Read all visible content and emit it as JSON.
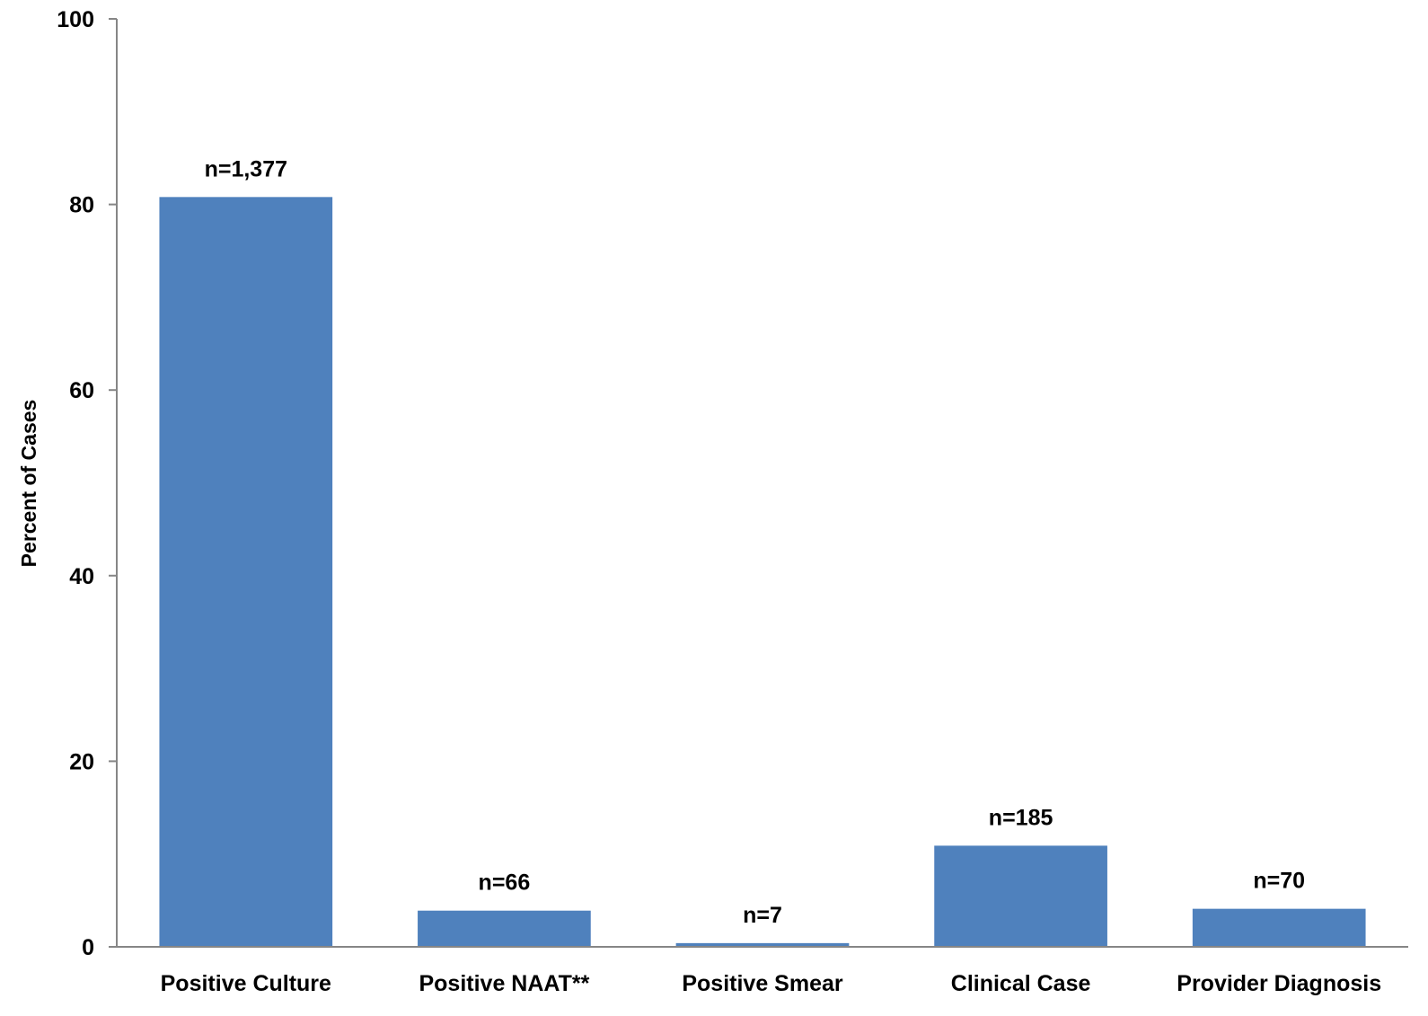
{
  "chart_data": {
    "type": "bar",
    "title": "",
    "xlabel": "",
    "ylabel": "Percent of Cases",
    "ylim": [
      0,
      100
    ],
    "yticks": [
      0,
      20,
      40,
      60,
      80,
      100
    ],
    "grid": false,
    "legend": "none",
    "categories": [
      "Positive Culture",
      "Positive NAAT**",
      "Positive Smear",
      "Clinical Case",
      "Provider Diagnosis"
    ],
    "values": [
      80.8,
      3.9,
      0.4,
      10.9,
      4.1
    ],
    "data_labels": [
      "n=1,377",
      "n=66",
      "n=7",
      "n=185",
      "n=70"
    ],
    "colors": {
      "bar": "#4F81BD",
      "axis": "#868686"
    }
  }
}
